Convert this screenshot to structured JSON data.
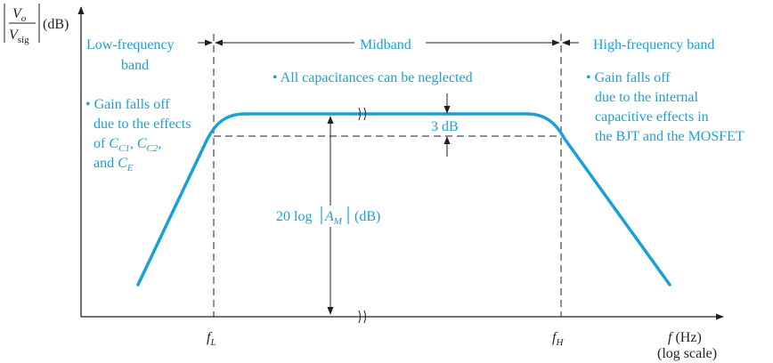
{
  "colors": {
    "curve": "#1aa0d8",
    "ink": "#231f20",
    "background": "#ffffff"
  },
  "y_axis": {
    "numerator": "V",
    "numerator_sub": "o",
    "denominator": "V",
    "denominator_sub": "sig",
    "unit": "(dB)"
  },
  "x_axis": {
    "symbol": "f",
    "unit": "(Hz)",
    "scale_note": "(log scale)"
  },
  "ticks": {
    "fL_sym": "f",
    "fL_sub": "L",
    "fH_sym": "f",
    "fH_sub": "H"
  },
  "regions": {
    "low_line1": "Low-frequency",
    "low_line2": "band",
    "mid": "Midband",
    "high": "High-frequency band"
  },
  "notes": {
    "mid": "• All capacitances can be neglected",
    "low_1": "• Gain falls off",
    "low_2": "due to the effects",
    "low_3_of": "of",
    "low_C": "C",
    "low_C1_sub": "C1",
    "low_C2_sub": "C2",
    "low_and": "and",
    "low_CE_sub": "E",
    "low_comma": ",",
    "high_1": "• Gain falls off",
    "high_2": "due to the internal",
    "high_3": "capacitive effects in",
    "high_4": "the BJT and the MOSFET"
  },
  "annotations": {
    "drop": "3 dB",
    "gain_prefix": "20 log",
    "gain_A": "A",
    "gain_sub": "M",
    "gain_unit": "(dB)"
  }
}
